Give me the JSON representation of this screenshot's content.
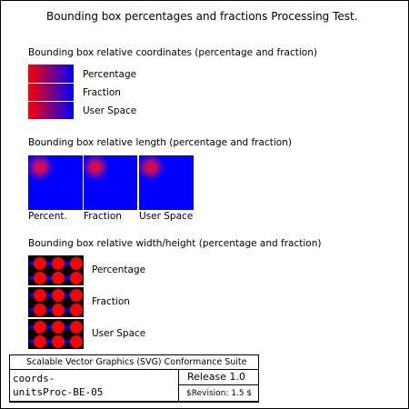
{
  "title": "Bounding box percentages and fractions Processing Test.",
  "sections": {
    "coordinates": {
      "heading": "Bounding box relative coordinates (percentage and fraction)",
      "labels": [
        "Percentage",
        "Fraction",
        "User Space"
      ]
    },
    "length": {
      "heading": "Bounding box relative length (percentage and fraction)",
      "labels": [
        "Percent.",
        "Fraction",
        "User Space"
      ]
    },
    "widthheight": {
      "heading": "Bounding box relative width/height (percentage and fraction)",
      "labels": [
        "Percentage",
        "Fraction",
        "User Space"
      ]
    }
  },
  "legend": {
    "suite": "Scalable Vector Graphics (SVG) Conformance Suite",
    "test_name_line1": "coords-",
    "test_name_line2": "unitsProc-BE-05",
    "release": "Release 1.0",
    "revision": "$Revision: 1.5 $"
  },
  "colors": {
    "gradient_start": "#ff0000",
    "gradient_end": "#0000ff",
    "pattern_background": "#000000"
  }
}
